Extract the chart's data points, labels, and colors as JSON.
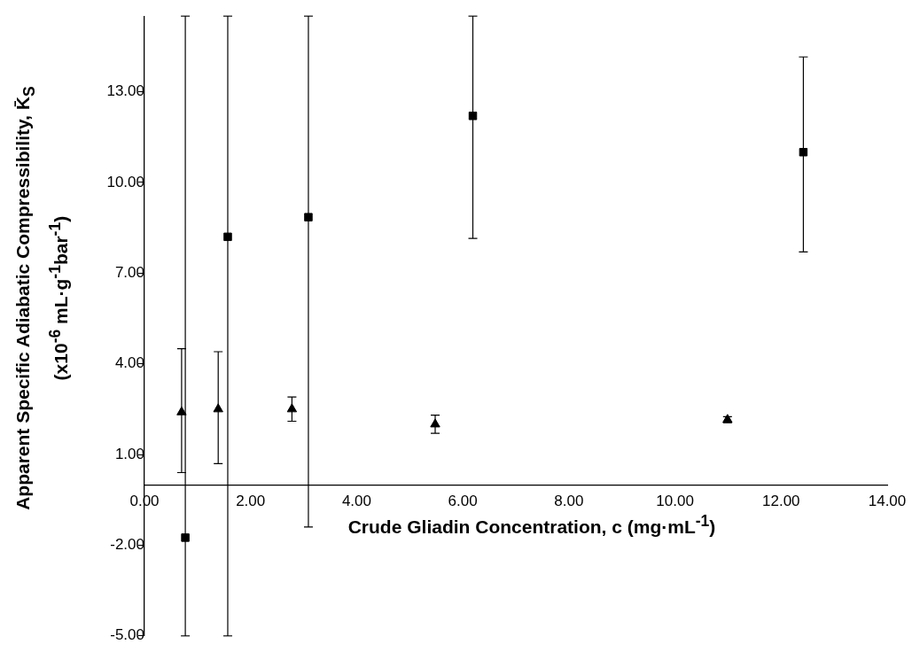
{
  "chart_data": {
    "type": "scatter",
    "xlabel": "Crude Gliadin Concentration, c (mg·mL$^{-1}$)",
    "ylabel": "Apparent Specific Adiabatic Compressibility, K̄$_{S}$\n(x10$^{-6}$ mL·g$^{-1}$bar$^{-1}$)",
    "xlim": [
      0,
      14
    ],
    "xticks": [
      {
        "value": 0,
        "label": "0.00"
      },
      {
        "value": 2,
        "label": "2.00"
      },
      {
        "value": 4,
        "label": "4.00"
      },
      {
        "value": 6,
        "label": "6.00"
      },
      {
        "value": 8,
        "label": "8.00"
      },
      {
        "value": 10,
        "label": "10.00"
      },
      {
        "value": 12,
        "label": "12.00"
      },
      {
        "value": 14,
        "label": "14.00"
      }
    ],
    "ylim": [
      -5,
      15.5
    ],
    "yticks": [
      {
        "value": -5,
        "label": "-5.00"
      },
      {
        "value": -2,
        "label": "-2.00"
      },
      {
        "value": 1,
        "label": "1.00"
      },
      {
        "value": 4,
        "label": "4.00"
      },
      {
        "value": 7,
        "label": "7.00"
      },
      {
        "value": 10,
        "label": "10.00"
      },
      {
        "value": 13,
        "label": "13.00"
      }
    ],
    "grid": false,
    "legend": false,
    "series": [
      {
        "color": "#000000",
        "marker": "square",
        "x": [
          0.77,
          1.57,
          3.09,
          6.19,
          12.42
        ],
        "values": [
          -1.75,
          8.2,
          8.85,
          12.2,
          11.0
        ],
        "errors": [
          [
            -5,
            15.5
          ],
          [
            -5,
            15.5
          ],
          [
            -1.4,
            15.5
          ],
          [
            8.15,
            15.5
          ],
          [
            7.7,
            14.15
          ]
        ]
      },
      {
        "color": "#000000",
        "marker": "triangle",
        "x": [
          0.7,
          1.39,
          2.78,
          5.48,
          10.99
        ],
        "values": [
          2.4,
          2.5,
          2.5,
          2.0,
          2.15
        ],
        "errors": [
          [
            0.4,
            4.5
          ],
          [
            0.7,
            4.4
          ],
          [
            2.1,
            2.9
          ],
          [
            1.7,
            2.3
          ],
          [
            2.05,
            2.25
          ]
        ]
      }
    ]
  }
}
